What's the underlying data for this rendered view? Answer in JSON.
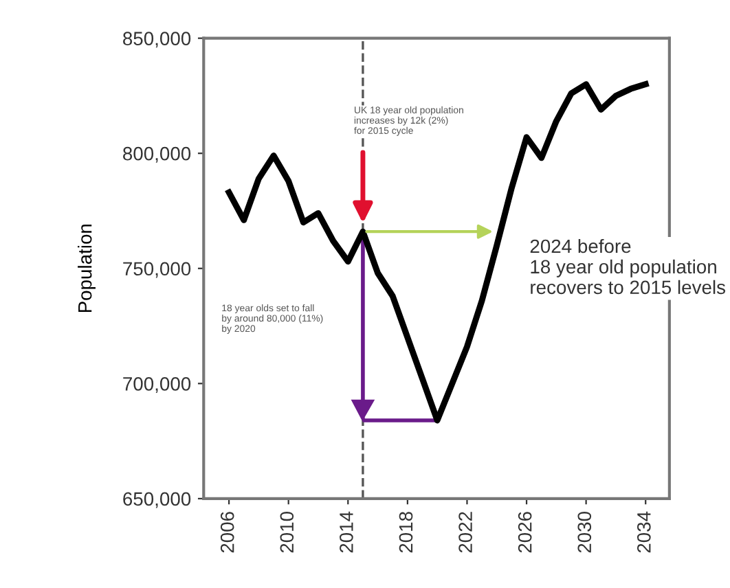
{
  "chart_data": {
    "type": "line",
    "ylabel": "Population",
    "x": [
      2006,
      2007,
      2008,
      2009,
      2010,
      2011,
      2012,
      2013,
      2014,
      2015,
      2016,
      2017,
      2018,
      2019,
      2020,
      2021,
      2022,
      2023,
      2024,
      2025,
      2026,
      2027,
      2028,
      2029,
      2030,
      2031,
      2032,
      2033,
      2034
    ],
    "series": [
      {
        "color": "#000000",
        "values": [
          783000,
          771000,
          789000,
          799000,
          788000,
          770000,
          774000,
          762000,
          753000,
          766000,
          748000,
          738000,
          720000,
          702000,
          684000,
          700000,
          716000,
          736000,
          760000,
          785000,
          807000,
          798000,
          814000,
          826000,
          830000,
          819000,
          825000,
          828000,
          830000
        ]
      }
    ],
    "xlim": [
      2004.3,
      2035.6
    ],
    "xticks": [
      2006,
      2010,
      2014,
      2018,
      2022,
      2026,
      2030,
      2034
    ],
    "ylim": [
      650000,
      850000
    ],
    "yticks": [
      {
        "value": 650000,
        "label": "650,000"
      },
      {
        "value": 700000,
        "label": "700,000"
      },
      {
        "value": 750000,
        "label": "750,000"
      },
      {
        "value": 800000,
        "label": "800,000"
      },
      {
        "value": 850000,
        "label": "850,000"
      }
    ],
    "ref_lines": [
      {
        "axis": "x",
        "value": 2015,
        "color": "#555555",
        "line_style": "dashed"
      }
    ],
    "annotations": [
      "UK 18 year old population\nincreases by 12k (2%)\nfor 2015 cycle",
      "18 year olds set to fall\nby around 80,000 (11%)\nby 2020",
      {
        "text": "2024 before\n18 year old population\nrecovers to 2015 levels",
        "x": 2024,
        "y": 766000
      }
    ],
    "grid": false,
    "legend": false,
    "marker": "none",
    "line_style": "solid"
  }
}
